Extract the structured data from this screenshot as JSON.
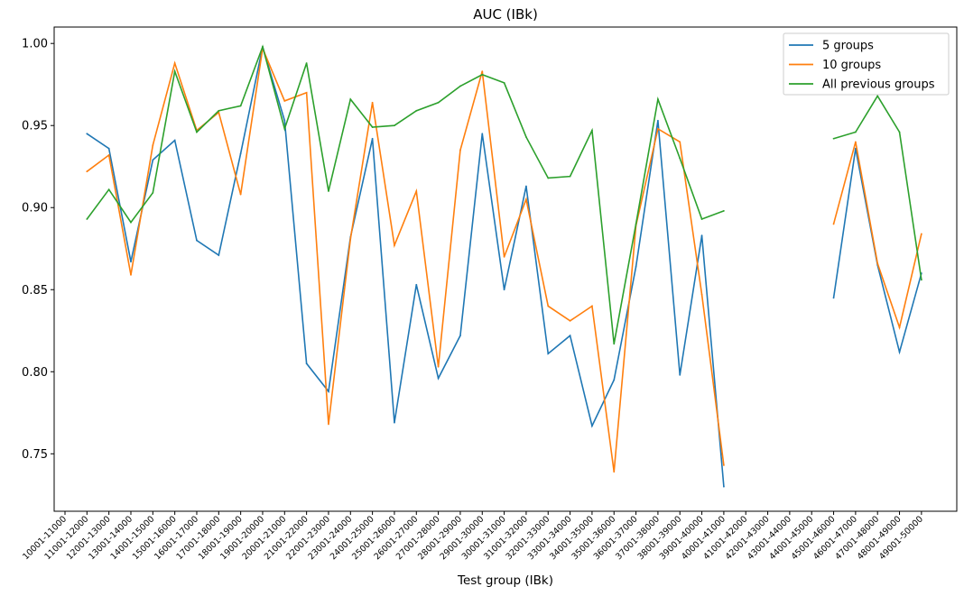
{
  "chart_data": {
    "type": "line",
    "title": "AUC (IBk)",
    "xlabel": "Test group (IBk)",
    "ylabel": "",
    "ylim": [
      0.715,
      1.01
    ],
    "yticks": [
      "0.75",
      "0.80",
      "0.85",
      "0.90",
      "0.95",
      "1.00"
    ],
    "grid": false,
    "legend_position": "top-right",
    "categories": [
      "10001-11000",
      "11001-12000",
      "12001-13000",
      "13001-14000",
      "14001-15000",
      "15001-16000",
      "16001-17000",
      "17001-18000",
      "18001-19000",
      "19001-20000",
      "20001-21000",
      "21001-22000",
      "22001-23000",
      "23001-24000",
      "24001-25000",
      "25001-26000",
      "26001-27000",
      "27001-28000",
      "28001-29000",
      "29001-30000",
      "30001-31000",
      "31001-32000",
      "32001-33000",
      "33001-34000",
      "34001-35000",
      "35001-36000",
      "36001-37000",
      "37001-38000",
      "38001-39000",
      "39001-40000",
      "40001-41000",
      "41001-42000",
      "42001-43000",
      "43001-44000",
      "44001-45000",
      "45001-46000",
      "46001-47000",
      "47001-48000",
      "48001-49000",
      "49001-50000"
    ],
    "series": [
      {
        "name": "5 groups",
        "color": "#1f77b4",
        "values": [
          null,
          0.945,
          0.936,
          0.867,
          0.929,
          0.941,
          0.88,
          0.871,
          0.933,
          0.998,
          0.953,
          0.805,
          0.788,
          0.882,
          0.942,
          0.769,
          0.853,
          0.796,
          0.822,
          0.945,
          0.85,
          0.913,
          0.811,
          0.822,
          0.767,
          0.795,
          0.864,
          0.953,
          0.798,
          0.883,
          0.73,
          null,
          null,
          null,
          null,
          0.845,
          0.936,
          0.865,
          0.812,
          0.86
        ]
      },
      {
        "name": "10 groups",
        "color": "#ff7f0e",
        "values": [
          null,
          0.922,
          0.932,
          0.859,
          0.938,
          0.988,
          0.947,
          0.958,
          0.908,
          0.997,
          0.965,
          0.97,
          0.768,
          0.881,
          0.964,
          0.877,
          0.91,
          0.803,
          0.935,
          0.983,
          0.87,
          0.905,
          0.84,
          0.831,
          0.84,
          0.739,
          0.889,
          0.948,
          0.94,
          0.847,
          0.743,
          null,
          null,
          null,
          null,
          0.89,
          0.94,
          0.866,
          0.827,
          0.884
        ]
      },
      {
        "name": "All previous groups",
        "color": "#2ca02c",
        "values": [
          null,
          0.893,
          0.911,
          0.891,
          0.909,
          0.983,
          0.946,
          0.959,
          0.962,
          0.998,
          0.948,
          0.988,
          0.91,
          0.966,
          0.949,
          0.95,
          0.959,
          0.964,
          0.974,
          0.981,
          0.976,
          0.943,
          0.918,
          0.919,
          0.947,
          0.817,
          0.89,
          0.966,
          0.93,
          0.893,
          0.898,
          null,
          null,
          null,
          null,
          0.942,
          0.946,
          0.968,
          0.946,
          0.856
        ]
      }
    ]
  }
}
